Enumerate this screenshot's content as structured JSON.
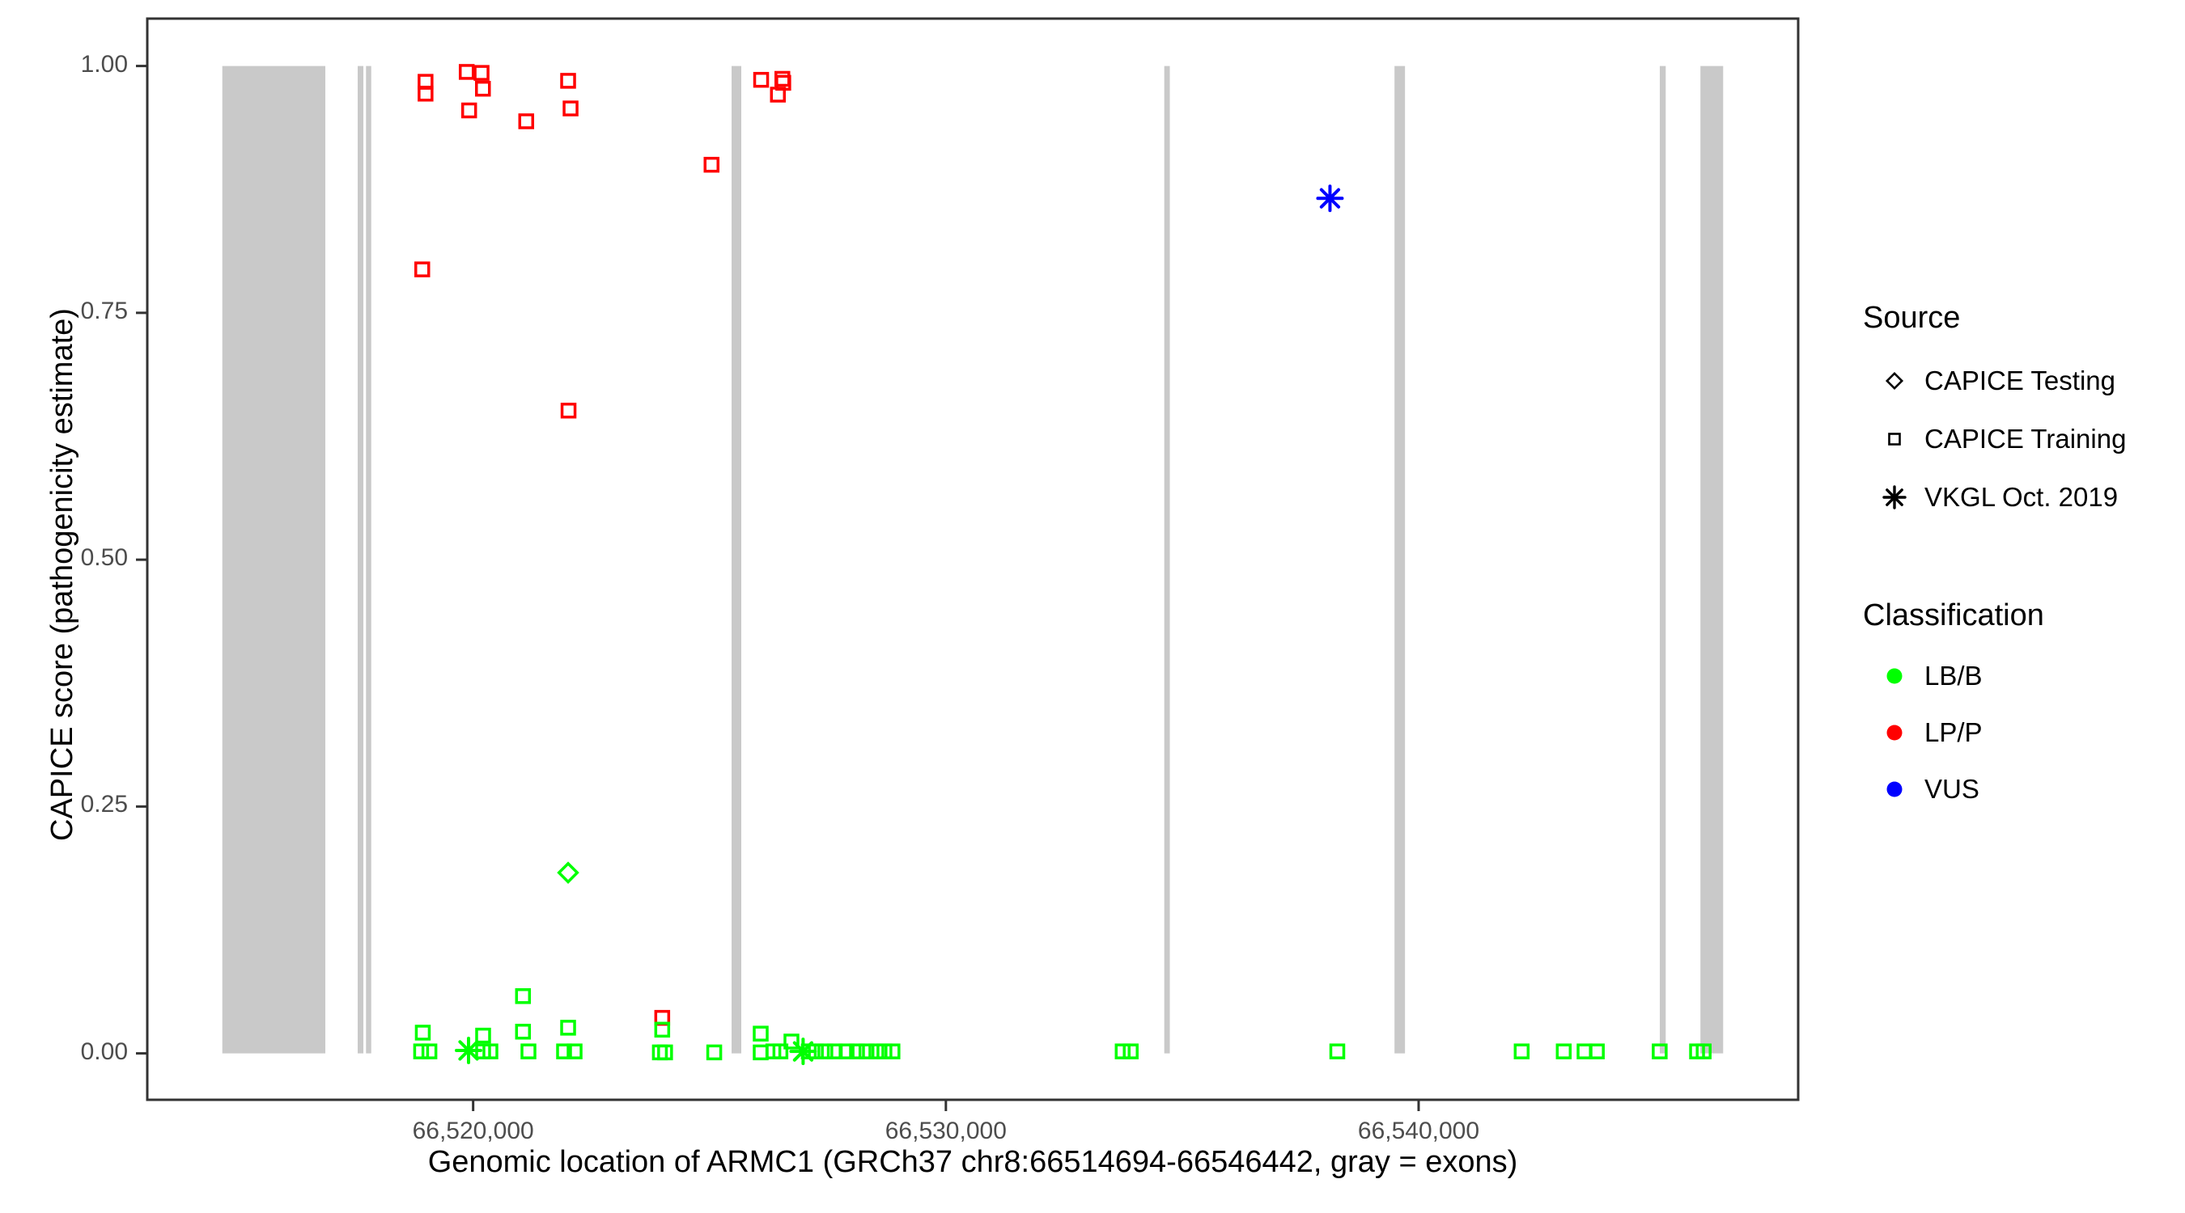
{
  "page": {
    "background": "#FFFFFF"
  },
  "chart_data": {
    "type": "scatter",
    "title": "",
    "xlabel": "Genomic location of ARMC1 (GRCh37 chr8:66514694-66546442, gray = exons)",
    "ylabel": "CAPICE score (pathogenicity estimate)",
    "xlim": [
      66513107,
      66548029
    ],
    "ylim": [
      -0.047,
      1.048
    ],
    "grid": false,
    "legend_position": "right",
    "panel_border_color": "#333333",
    "axis_text_color": "#4D4D4D",
    "exon_color": "#C9C9C9",
    "x_ticks": [
      {
        "value": 66520000,
        "label": "66,520,000"
      },
      {
        "value": 66530000,
        "label": "66,530,000"
      },
      {
        "value": 66540000,
        "label": "66,540,000"
      }
    ],
    "y_ticks": [
      {
        "value": 0.0,
        "label": "0.00"
      },
      {
        "value": 0.25,
        "label": "0.25"
      },
      {
        "value": 0.5,
        "label": "0.50"
      },
      {
        "value": 0.75,
        "label": "0.75"
      },
      {
        "value": 1.0,
        "label": "1.00"
      }
    ],
    "exons": [
      [
        66514694,
        66516873
      ],
      [
        66517558,
        66517678
      ],
      [
        66517734,
        66517844
      ],
      [
        66525467,
        66525672
      ],
      [
        66534620,
        66534737
      ],
      [
        66539490,
        66539712
      ],
      [
        66545102,
        66545227
      ],
      [
        66545961,
        66546442
      ]
    ],
    "series": [
      {
        "name": "CAPICE Training LP/P",
        "source": "CAPICE Training",
        "classification": "LP/P",
        "shape": "square",
        "color": "#FF0000",
        "points": [
          [
            66518923,
            0.794
          ],
          [
            66518993,
            0.984
          ],
          [
            66518993,
            0.972
          ],
          [
            66519864,
            0.994
          ],
          [
            66519915,
            0.955
          ],
          [
            66520178,
            0.993
          ],
          [
            66520207,
            0.977
          ],
          [
            66521123,
            0.944
          ],
          [
            66522009,
            0.985
          ],
          [
            66522061,
            0.957
          ],
          [
            66522018,
            0.651
          ],
          [
            66524000,
            0.036
          ],
          [
            66525043,
            0.9
          ],
          [
            66526092,
            0.986
          ],
          [
            66526447,
            0.971
          ],
          [
            66526541,
            0.987
          ],
          [
            66526560,
            0.983
          ]
        ]
      },
      {
        "name": "CAPICE Training LB/B",
        "source": "CAPICE Training",
        "classification": "LB/B",
        "shape": "square",
        "color": "#00FF00",
        "points": [
          [
            66518900,
            0.002
          ],
          [
            66518935,
            0.021
          ],
          [
            66519075,
            0.002
          ],
          [
            66520211,
            0.018
          ],
          [
            66520211,
            0.002
          ],
          [
            66520365,
            0.002
          ],
          [
            66521055,
            0.058
          ],
          [
            66521055,
            0.022
          ],
          [
            66521170,
            0.002
          ],
          [
            66521923,
            0.002
          ],
          [
            66522009,
            0.026
          ],
          [
            66522146,
            0.002
          ],
          [
            66523950,
            0.001
          ],
          [
            66524000,
            0.024
          ],
          [
            66524060,
            0.001
          ],
          [
            66525100,
            0.001
          ],
          [
            66526083,
            0.02
          ],
          [
            66526083,
            0.001
          ],
          [
            66526350,
            0.002
          ],
          [
            66526500,
            0.002
          ],
          [
            66526733,
            0.012
          ],
          [
            66527100,
            0.002
          ],
          [
            66527250,
            0.002
          ],
          [
            66527450,
            0.002
          ],
          [
            66527650,
            0.002
          ],
          [
            66527900,
            0.002
          ],
          [
            66528120,
            0.002
          ],
          [
            66528320,
            0.002
          ],
          [
            66528530,
            0.002
          ],
          [
            66528700,
            0.002
          ],
          [
            66528870,
            0.002
          ],
          [
            66533740,
            0.002
          ],
          [
            66533910,
            0.002
          ],
          [
            66538280,
            0.002
          ],
          [
            66542180,
            0.002
          ],
          [
            66543070,
            0.002
          ],
          [
            66543510,
            0.002
          ],
          [
            66543770,
            0.002
          ],
          [
            66545100,
            0.002
          ],
          [
            66545890,
            0.002
          ],
          [
            66546030,
            0.002
          ]
        ]
      },
      {
        "name": "CAPICE Testing LB/B",
        "source": "CAPICE Testing",
        "classification": "LB/B",
        "shape": "diamond",
        "color": "#00FF00",
        "points": [
          [
            66522009,
            0.183
          ]
        ]
      },
      {
        "name": "VKGL Oct. 2019 LB/B",
        "source": "VKGL Oct. 2019",
        "classification": "LB/B",
        "shape": "asterisk",
        "color": "#00FF00",
        "points": [
          [
            66519903,
            0.003
          ],
          [
            66526980,
            0.002
          ]
        ]
      },
      {
        "name": "VKGL Oct. 2019 VUS",
        "source": "VKGL Oct. 2019",
        "classification": "VUS",
        "shape": "asterisk",
        "color": "#0000FF",
        "points": [
          [
            66538125,
            0.866
          ]
        ]
      }
    ]
  },
  "legend": {
    "source": {
      "title": "Source",
      "items": [
        {
          "shape": "diamond",
          "label": "CAPICE Testing",
          "color": "#000000"
        },
        {
          "shape": "square",
          "label": "CAPICE Training",
          "color": "#000000"
        },
        {
          "shape": "asterisk",
          "label": "VKGL Oct. 2019",
          "color": "#000000"
        }
      ]
    },
    "classification": {
      "title": "Classification",
      "items": [
        {
          "shape": "circle",
          "label": "LB/B",
          "color": "#00FF00"
        },
        {
          "shape": "circle",
          "label": "LP/P",
          "color": "#FF0000"
        },
        {
          "shape": "circle",
          "label": "VUS",
          "color": "#0000FF"
        }
      ]
    }
  }
}
